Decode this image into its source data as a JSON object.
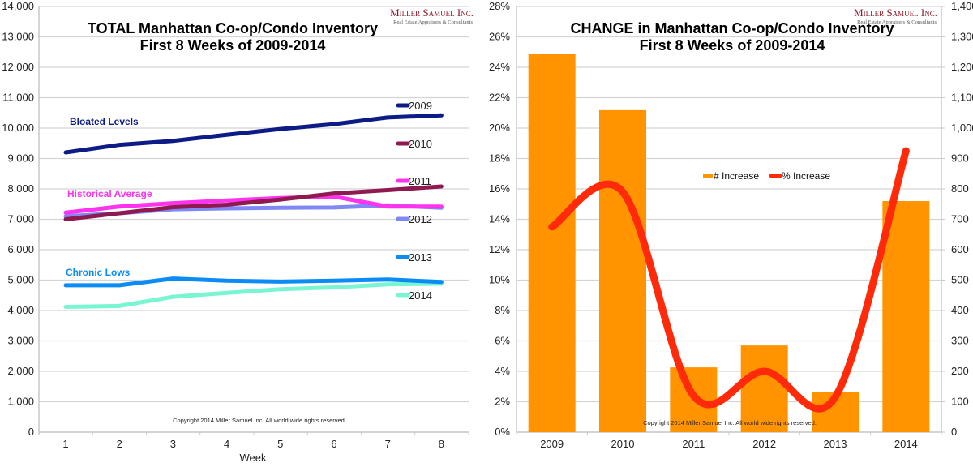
{
  "chart_data": [
    {
      "type": "line",
      "title": "TOTAL Manhattan Co-op/Condo Inventory",
      "subtitle": "First 8 Weeks of 2009-2014",
      "xlabel": "Week",
      "ylabel": "",
      "x": [
        1,
        2,
        3,
        4,
        5,
        6,
        7,
        8
      ],
      "ylim": [
        0,
        14000
      ],
      "yticks": [
        0,
        1000,
        2000,
        3000,
        4000,
        5000,
        6000,
        7000,
        8000,
        9000,
        10000,
        11000,
        12000,
        13000,
        14000
      ],
      "ytick_labels": [
        "0",
        "1,000",
        "2,000",
        "3,000",
        "4,000",
        "5,000",
        "6,000",
        "7,000",
        "8,000",
        "9,000",
        "10,000",
        "11,000",
        "12,000",
        "13,000",
        "14,000"
      ],
      "grid": true,
      "legend": "right",
      "series": [
        {
          "name": "2009",
          "color": "#0d1b87",
          "values": [
            9200,
            9450,
            9580,
            9780,
            9970,
            10130,
            10350,
            10420
          ]
        },
        {
          "name": "2010",
          "color": "#8e1a50",
          "values": [
            7000,
            7200,
            7400,
            7480,
            7650,
            7850,
            7960,
            8080
          ]
        },
        {
          "name": "2011",
          "color": "#ff33ee",
          "values": [
            7220,
            7420,
            7530,
            7620,
            7700,
            7750,
            7420,
            7420
          ]
        },
        {
          "name": "2012",
          "color": "#7f88f5",
          "values": [
            7100,
            7200,
            7330,
            7360,
            7380,
            7390,
            7460,
            7380
          ]
        },
        {
          "name": "2013",
          "color": "#0b8cf5",
          "values": [
            4830,
            4830,
            5050,
            4980,
            4950,
            4980,
            5020,
            4940
          ]
        },
        {
          "name": "2014",
          "color": "#7af5d3",
          "values": [
            4120,
            4150,
            4450,
            4580,
            4700,
            4760,
            4860,
            4880
          ]
        }
      ],
      "annotations": [
        {
          "text": "Bloated Levels",
          "color": "#0d1b87"
        },
        {
          "text": "Historical Average",
          "color": "#ff33ee"
        },
        {
          "text": "Chronic Lows",
          "color": "#0b8cf5"
        }
      ],
      "copyright": "Copyright 2014 Miller Samuel Inc. All world wide rights reserved."
    },
    {
      "type": "bar",
      "title": "CHANGE in Manhattan Co-op/Condo Inventory",
      "subtitle": "First 8 Weeks of 2009-2014",
      "categories": [
        "2009",
        "2010",
        "2011",
        "2012",
        "2013",
        "2014"
      ],
      "series": [
        {
          "name": "# Increase",
          "type": "bar",
          "axis": "right",
          "color": "#ff9400",
          "values": [
            1243,
            1059,
            213,
            285,
            133,
            760
          ]
        },
        {
          "name": "% Increase",
          "type": "line",
          "axis": "left",
          "color": "#ff2a0a",
          "values": [
            13.5,
            15.8,
            2.4,
            4.0,
            2.3,
            18.5
          ]
        }
      ],
      "ylim_left": [
        0,
        28
      ],
      "yticks_left": [
        "0%",
        "2%",
        "4%",
        "6%",
        "8%",
        "10%",
        "12%",
        "14%",
        "16%",
        "18%",
        "20%",
        "22%",
        "24%",
        "26%",
        "28%"
      ],
      "ylim_right": [
        0,
        1400
      ],
      "yticks_right": [
        "0",
        "100",
        "200",
        "300",
        "400",
        "500",
        "600",
        "700",
        "800",
        "900",
        "1,000",
        "1,100",
        "1,200",
        "1,300",
        "1,400"
      ],
      "grid": true,
      "legend": "center",
      "copyright": "Copyright 2014 Miller Samuel Inc. All world wide rights reserved."
    }
  ],
  "logo": {
    "name": "Miller Samuel Inc.",
    "tagline": "Real Estate Appraisers & Consultants"
  }
}
